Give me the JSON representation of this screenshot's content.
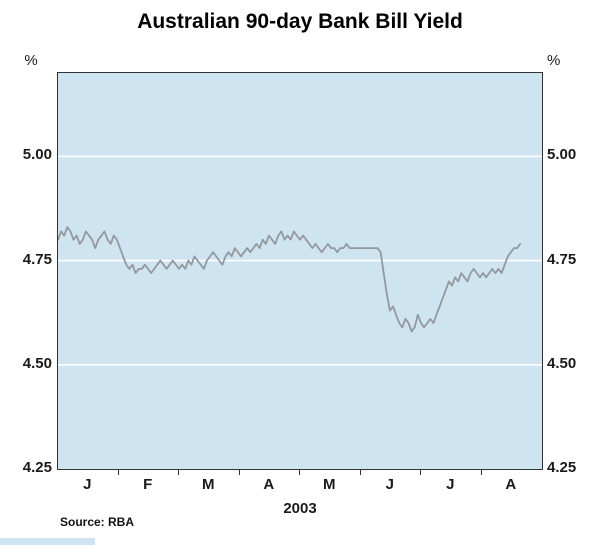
{
  "chart_data": {
    "type": "line",
    "title": "Australian 90-day Bank Bill Yield",
    "unit": "%",
    "year_label": "2003",
    "source": "Source: RBA",
    "month_labels": [
      "J",
      "F",
      "M",
      "A",
      "M",
      "J",
      "J",
      "A"
    ],
    "ylim": [
      4.25,
      5.2
    ],
    "yticks": [
      5.0,
      4.75,
      4.5,
      4.25
    ],
    "gridlines": [
      4.5,
      4.75,
      5.0
    ],
    "legend": "off",
    "colors": {
      "plot_background": "#cfe4f1",
      "grid": "#ffffff",
      "line": "#95989b",
      "axis": "#333333",
      "text": "#1a1a1a"
    },
    "series": [
      {
        "name": "Australian 90-day bank bill yield",
        "values": [
          4.8,
          4.82,
          4.81,
          4.83,
          4.82,
          4.8,
          4.81,
          4.79,
          4.8,
          4.82,
          4.81,
          4.8,
          4.78,
          4.8,
          4.81,
          4.82,
          4.8,
          4.79,
          4.81,
          4.8,
          4.78,
          4.76,
          4.74,
          4.73,
          4.74,
          4.72,
          4.73,
          4.73,
          4.74,
          4.73,
          4.72,
          4.73,
          4.74,
          4.75,
          4.74,
          4.73,
          4.74,
          4.75,
          4.74,
          4.73,
          4.74,
          4.73,
          4.75,
          4.74,
          4.76,
          4.75,
          4.74,
          4.73,
          4.75,
          4.76,
          4.77,
          4.76,
          4.75,
          4.74,
          4.76,
          4.77,
          4.76,
          4.78,
          4.77,
          4.76,
          4.77,
          4.78,
          4.77,
          4.78,
          4.79,
          4.78,
          4.8,
          4.79,
          4.81,
          4.8,
          4.79,
          4.81,
          4.82,
          4.8,
          4.81,
          4.8,
          4.82,
          4.81,
          4.8,
          4.81,
          4.8,
          4.79,
          4.78,
          4.79,
          4.78,
          4.77,
          4.78,
          4.79,
          4.78,
          4.78,
          4.77,
          4.78,
          4.78,
          4.79,
          4.78,
          4.78,
          4.78,
          4.78,
          4.78,
          4.78,
          4.78,
          4.78,
          4.78,
          4.78,
          4.77,
          4.72,
          4.67,
          4.63,
          4.64,
          4.62,
          4.6,
          4.59,
          4.61,
          4.6,
          4.58,
          4.59,
          4.62,
          4.6,
          4.59,
          4.6,
          4.61,
          4.6,
          4.62,
          4.64,
          4.66,
          4.68,
          4.7,
          4.69,
          4.71,
          4.7,
          4.72,
          4.71,
          4.7,
          4.72,
          4.73,
          4.72,
          4.71,
          4.72,
          4.71,
          4.72,
          4.73,
          4.72,
          4.73,
          4.72,
          4.74,
          4.76,
          4.77,
          4.78,
          4.78,
          4.79
        ]
      }
    ]
  }
}
